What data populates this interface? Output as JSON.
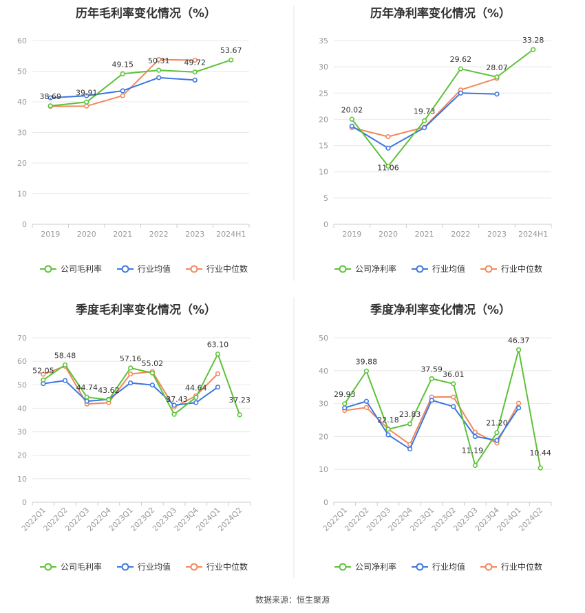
{
  "colors": {
    "company": "#5cc237",
    "industry_avg": "#3c76e0",
    "industry_median": "#f2875b",
    "grid": "#e8e8e8",
    "axis": "#cccccc",
    "divider": "#e5e5e5"
  },
  "source": "数据来源：恒生聚源",
  "chart_data": [
    {
      "type": "line",
      "title": "历年毛利率变化情况（%）",
      "categories": [
        "2019",
        "2020",
        "2021",
        "2022",
        "2023",
        "2024H1"
      ],
      "ylim": [
        0,
        60
      ],
      "yticks": [
        0,
        10,
        20,
        30,
        40,
        50,
        60
      ],
      "series": [
        {
          "name": "公司毛利率",
          "values": [
            38.69,
            39.91,
            49.15,
            50.31,
            49.72,
            53.67
          ]
        },
        {
          "name": "行业均值",
          "values": [
            41.3,
            42.0,
            43.6,
            47.9,
            47.1,
            null
          ]
        },
        {
          "name": "行业中位数",
          "values": [
            38.5,
            38.6,
            42.0,
            53.8,
            53.6,
            null
          ]
        }
      ],
      "labels": [
        "38.69",
        "39.91",
        "49.15",
        "50.31",
        "49.72",
        "53.67"
      ],
      "legend": [
        "公司毛利率",
        "行业均值",
        "行业中位数"
      ]
    },
    {
      "type": "line",
      "title": "历年净利率变化情况（%）",
      "categories": [
        "2019",
        "2020",
        "2021",
        "2022",
        "2023",
        "2024H1"
      ],
      "ylim": [
        0,
        35
      ],
      "yticks": [
        0,
        5,
        10,
        15,
        20,
        25,
        30,
        35
      ],
      "series": [
        {
          "name": "公司净利率",
          "values": [
            20.02,
            11.06,
            19.73,
            29.62,
            28.07,
            33.28
          ]
        },
        {
          "name": "行业均值",
          "values": [
            18.7,
            14.5,
            18.4,
            25.0,
            24.8,
            null
          ]
        },
        {
          "name": "行业中位数",
          "values": [
            18.4,
            16.7,
            18.5,
            25.6,
            27.8,
            null
          ]
        }
      ],
      "labels": [
        "20.02",
        "11.06",
        "19.73",
        "29.62",
        "28.07",
        "33.28"
      ],
      "legend": [
        "公司净利率",
        "行业均值",
        "行业中位数"
      ]
    },
    {
      "type": "line",
      "title": "季度毛利率变化情况（%）",
      "categories": [
        "2022Q1",
        "2022Q2",
        "2022Q3",
        "2022Q4",
        "2023Q1",
        "2023Q2",
        "2023Q3",
        "2023Q4",
        "2024Q1",
        "2024Q2"
      ],
      "ylim": [
        0,
        70
      ],
      "yticks": [
        0,
        10,
        20,
        30,
        40,
        50,
        60,
        70
      ],
      "series": [
        {
          "name": "公司毛利率",
          "values": [
            52.05,
            58.48,
            44.74,
            43.62,
            57.16,
            55.02,
            37.43,
            44.64,
            63.1,
            37.23
          ]
        },
        {
          "name": "行业均值",
          "values": [
            50.5,
            51.8,
            43.0,
            43.8,
            50.8,
            49.9,
            41.3,
            42.4,
            49.0,
            null
          ]
        },
        {
          "name": "行业中位数",
          "values": [
            54.5,
            57.9,
            41.8,
            42.4,
            54.6,
            55.6,
            40.5,
            45.3,
            54.7,
            null
          ]
        }
      ],
      "labels": [
        "52.05",
        "58.48",
        "44.74",
        "43.62",
        "57.16",
        "55.02",
        "37.43",
        "44.64",
        "63.10",
        "37.23"
      ],
      "legend": [
        "公司毛利率",
        "行业均值",
        "行业中位数"
      ]
    },
    {
      "type": "line",
      "title": "季度净利率变化情况（%）",
      "categories": [
        "2022Q1",
        "2022Q2",
        "2022Q3",
        "2022Q4",
        "2023Q1",
        "2023Q2",
        "2023Q3",
        "2023Q4",
        "2024Q1",
        "2024Q2"
      ],
      "ylim": [
        0,
        50
      ],
      "yticks": [
        0,
        10,
        20,
        30,
        40,
        50
      ],
      "series": [
        {
          "name": "公司净利率",
          "values": [
            29.93,
            39.88,
            22.18,
            23.83,
            37.59,
            36.01,
            11.19,
            21.2,
            46.37,
            10.44
          ]
        },
        {
          "name": "行业均值",
          "values": [
            28.7,
            30.7,
            20.5,
            16.2,
            31.0,
            29.1,
            20.0,
            18.8,
            28.7,
            null
          ]
        },
        {
          "name": "行业中位数",
          "values": [
            27.9,
            28.8,
            22.3,
            17.6,
            32.0,
            32.0,
            21.3,
            18.0,
            30.1,
            null
          ]
        }
      ],
      "labels": [
        "29.93",
        "39.88",
        "22.18",
        "23.83",
        "37.59",
        "36.01",
        "11.19",
        "21.20",
        "46.37",
        "10.44"
      ],
      "legend": [
        "公司净利率",
        "行业均值",
        "行业中位数"
      ]
    }
  ]
}
